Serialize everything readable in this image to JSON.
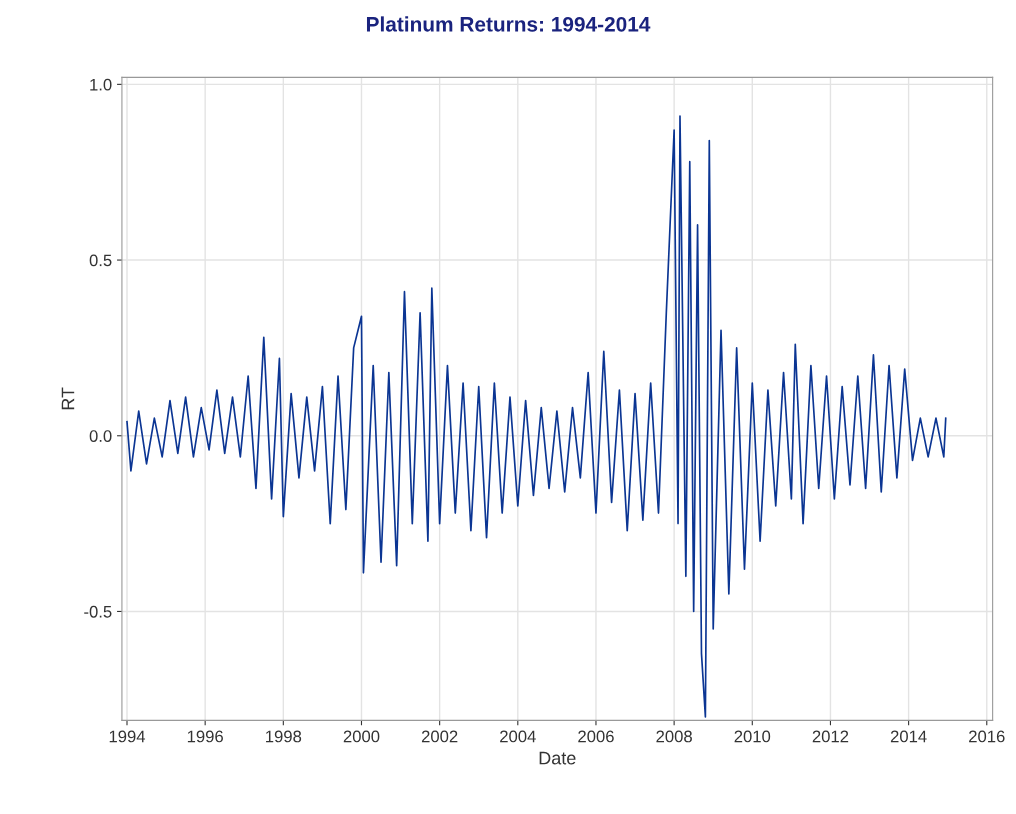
{
  "chart_data": {
    "type": "line",
    "title": "Platinum Returns: 1994-2014",
    "xlabel": "Date",
    "ylabel": "RT",
    "grid": true,
    "marker": "none",
    "line_style": "solid",
    "xlim": [
      1993.87,
      2016.15
    ],
    "xticks": [
      1994,
      1996,
      1998,
      2000,
      2002,
      2004,
      2006,
      2008,
      2010,
      2012,
      2014,
      2016
    ],
    "ylim": [
      -0.81,
      1.02
    ],
    "yticks": [
      {
        "value": -0.5,
        "label": "-0.5"
      },
      {
        "value": 0,
        "label": "0.0"
      },
      {
        "value": 0.5,
        "label": "0.5"
      },
      {
        "value": 1,
        "label": "1.0"
      }
    ],
    "series": [
      {
        "color": "#0b3593",
        "x": [
          1994.0,
          1994.1,
          1994.3,
          1994.5,
          1994.7,
          1994.9,
          1995.1,
          1995.3,
          1995.5,
          1995.7,
          1995.9,
          1996.1,
          1996.3,
          1996.5,
          1996.7,
          1996.9,
          1997.1,
          1997.3,
          1997.5,
          1997.7,
          1997.9,
          1998.0,
          1998.2,
          1998.4,
          1998.6,
          1998.8,
          1999.0,
          1999.2,
          1999.4,
          1999.6,
          1999.8,
          2000.0,
          2000.05,
          2000.3,
          2000.5,
          2000.7,
          2000.9,
          2001.1,
          2001.3,
          2001.5,
          2001.7,
          2001.8,
          2002.0,
          2002.2,
          2002.4,
          2002.6,
          2002.8,
          2003.0,
          2003.2,
          2003.4,
          2003.6,
          2003.8,
          2004.0,
          2004.2,
          2004.4,
          2004.6,
          2004.8,
          2005.0,
          2005.2,
          2005.4,
          2005.6,
          2005.8,
          2006.0,
          2006.2,
          2006.4,
          2006.6,
          2006.8,
          2007.0,
          2007.2,
          2007.4,
          2007.6,
          2007.8,
          2008.0,
          2008.1,
          2008.15,
          2008.3,
          2008.4,
          2008.5,
          2008.6,
          2008.7,
          2008.8,
          2008.9,
          2009.0,
          2009.2,
          2009.4,
          2009.6,
          2009.8,
          2010.0,
          2010.2,
          2010.4,
          2010.6,
          2010.8,
          2011.0,
          2011.1,
          2011.3,
          2011.5,
          2011.7,
          2011.9,
          2012.1,
          2012.3,
          2012.5,
          2012.7,
          2012.9,
          2013.1,
          2013.3,
          2013.5,
          2013.7,
          2013.9,
          2014.1,
          2014.3,
          2014.5,
          2014.7,
          2014.9,
          2014.95
        ],
        "values": [
          0.04,
          -0.1,
          0.07,
          -0.08,
          0.05,
          -0.06,
          0.1,
          -0.05,
          0.11,
          -0.06,
          0.08,
          -0.04,
          0.13,
          -0.05,
          0.11,
          -0.06,
          0.17,
          -0.15,
          0.28,
          -0.18,
          0.22,
          -0.23,
          0.12,
          -0.12,
          0.11,
          -0.1,
          0.14,
          -0.25,
          0.17,
          -0.21,
          0.25,
          0.34,
          -0.39,
          0.2,
          -0.36,
          0.18,
          -0.37,
          0.41,
          -0.25,
          0.35,
          -0.3,
          0.42,
          -0.25,
          0.2,
          -0.22,
          0.15,
          -0.27,
          0.14,
          -0.29,
          0.15,
          -0.22,
          0.11,
          -0.2,
          0.1,
          -0.17,
          0.08,
          -0.15,
          0.07,
          -0.16,
          0.08,
          -0.12,
          0.18,
          -0.22,
          0.24,
          -0.19,
          0.13,
          -0.27,
          0.12,
          -0.24,
          0.15,
          -0.22,
          0.35,
          0.87,
          -0.25,
          0.91,
          -0.4,
          0.78,
          -0.5,
          0.6,
          -0.62,
          -0.8,
          0.84,
          -0.55,
          0.3,
          -0.45,
          0.25,
          -0.38,
          0.15,
          -0.3,
          0.13,
          -0.2,
          0.18,
          -0.18,
          0.26,
          -0.25,
          0.2,
          -0.15,
          0.17,
          -0.18,
          0.14,
          -0.14,
          0.17,
          -0.15,
          0.23,
          -0.16,
          0.2,
          -0.12,
          0.19,
          -0.07,
          0.05,
          -0.06,
          0.05,
          -0.06,
          0.05
        ]
      }
    ]
  }
}
